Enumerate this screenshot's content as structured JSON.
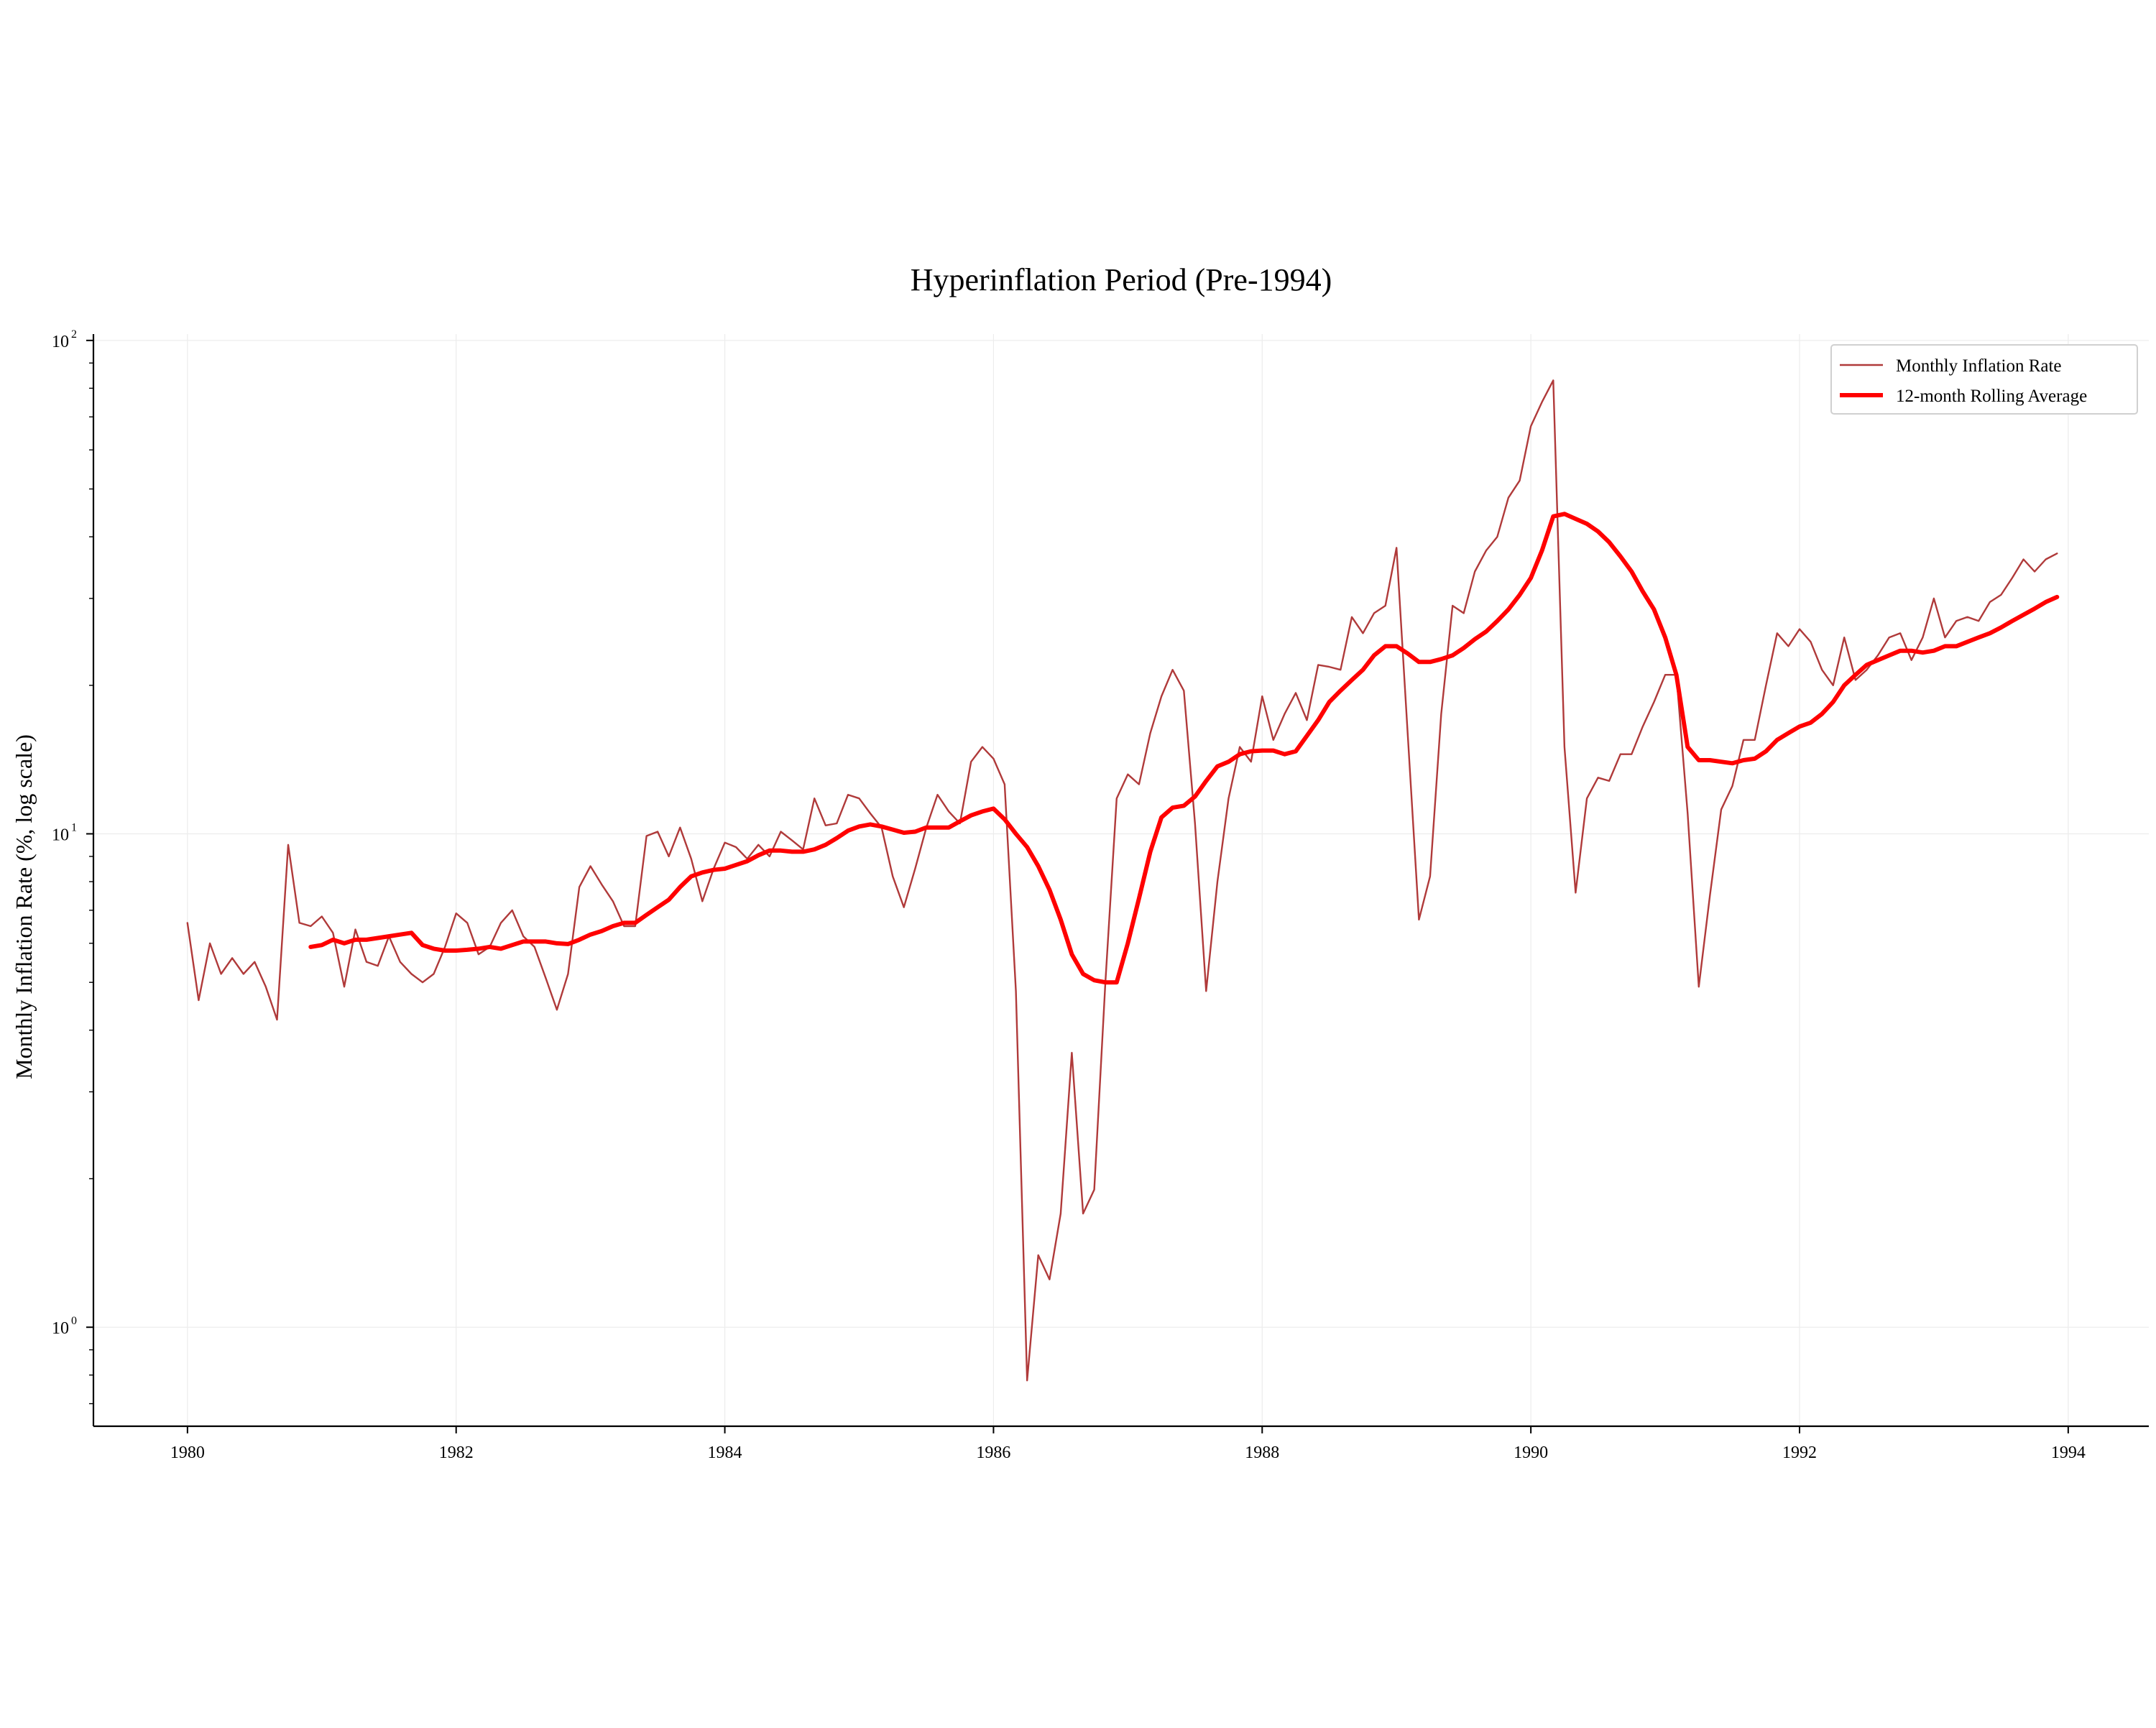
{
  "chart_data": {
    "type": "line",
    "title": "Hyperinflation Period (Pre-1994)",
    "xlabel": "",
    "ylabel": "Monthly Inflation Rate (%, log scale)",
    "yscale": "log",
    "xlim": [
      1979.3,
      1994.6
    ],
    "ylim": [
      0.63,
      103
    ],
    "x_ticks": [
      1980,
      1982,
      1984,
      1986,
      1988,
      1990,
      1992,
      1994
    ],
    "x_tick_labels": [
      "1980",
      "1982",
      "1984",
      "1986",
      "1988",
      "1990",
      "1992",
      "1994"
    ],
    "y_ticks": [
      {
        "value": 1,
        "base": "10",
        "exp": "0"
      },
      {
        "value": 10,
        "base": "10",
        "exp": "1"
      },
      {
        "value": 100,
        "base": "10",
        "exp": "2"
      }
    ],
    "grid": true,
    "legend_position": "top-right",
    "series": [
      {
        "name": "Monthly Inflation Rate",
        "color": "#b03a3a",
        "x": [
          1980.0,
          1980.083,
          1980.167,
          1980.25,
          1980.333,
          1980.417,
          1980.5,
          1980.583,
          1980.667,
          1980.75,
          1980.833,
          1980.917,
          1981.0,
          1981.083,
          1981.167,
          1981.25,
          1981.333,
          1981.417,
          1981.5,
          1981.583,
          1981.667,
          1981.75,
          1981.833,
          1981.917,
          1982.0,
          1982.083,
          1982.167,
          1982.25,
          1982.333,
          1982.417,
          1982.5,
          1982.583,
          1982.667,
          1982.75,
          1982.833,
          1982.917,
          1983.0,
          1983.083,
          1983.167,
          1983.25,
          1983.333,
          1983.417,
          1983.5,
          1983.583,
          1983.667,
          1983.75,
          1983.833,
          1983.917,
          1984.0,
          1984.083,
          1984.167,
          1984.25,
          1984.333,
          1984.417,
          1984.5,
          1984.583,
          1984.667,
          1984.75,
          1984.833,
          1984.917,
          1985.0,
          1985.083,
          1985.167,
          1985.25,
          1985.333,
          1985.417,
          1985.5,
          1985.583,
          1985.667,
          1985.75,
          1985.833,
          1985.917,
          1986.0,
          1986.083,
          1986.167,
          1986.25,
          1986.333,
          1986.417,
          1986.5,
          1986.583,
          1986.667,
          1986.75,
          1986.833,
          1986.917,
          1987.0,
          1987.083,
          1987.167,
          1987.25,
          1987.333,
          1987.417,
          1987.5,
          1987.583,
          1987.667,
          1987.75,
          1987.833,
          1987.917,
          1988.0,
          1988.083,
          1988.167,
          1988.25,
          1988.333,
          1988.417,
          1988.5,
          1988.583,
          1988.667,
          1988.75,
          1988.833,
          1988.917,
          1989.0,
          1989.083,
          1989.167,
          1989.25,
          1989.333,
          1989.417,
          1989.5,
          1989.583,
          1989.667,
          1989.75,
          1989.833,
          1989.917,
          1990.0,
          1990.083,
          1990.167,
          1990.25,
          1990.333,
          1990.417,
          1990.5,
          1990.583,
          1990.667,
          1990.75,
          1990.833,
          1990.917,
          1991.0,
          1991.083,
          1991.167,
          1991.25,
          1991.333,
          1991.417,
          1991.5,
          1991.583,
          1991.667,
          1991.75,
          1991.833,
          1991.917,
          1992.0,
          1992.083,
          1992.167,
          1992.25,
          1992.333,
          1992.417,
          1992.5,
          1992.583,
          1992.667,
          1992.75,
          1992.833,
          1992.917,
          1993.0,
          1993.083,
          1993.167,
          1993.25,
          1993.333,
          1993.417,
          1993.5,
          1993.583,
          1993.667,
          1993.75,
          1993.833,
          1993.917
        ],
        "y": [
          6.6,
          4.6,
          6.0,
          5.2,
          5.6,
          5.2,
          5.5,
          4.9,
          4.2,
          9.5,
          6.6,
          6.5,
          6.8,
          6.3,
          4.9,
          6.4,
          5.5,
          5.4,
          6.2,
          5.5,
          5.2,
          5.0,
          5.2,
          5.9,
          6.9,
          6.6,
          5.7,
          5.9,
          6.6,
          7.0,
          6.2,
          5.9,
          5.1,
          4.4,
          5.2,
          7.8,
          8.6,
          7.9,
          7.3,
          6.5,
          6.5,
          9.9,
          10.1,
          9.0,
          10.3,
          8.9,
          7.3,
          8.5,
          9.6,
          9.4,
          8.9,
          9.5,
          9.0,
          10.1,
          9.7,
          9.3,
          11.8,
          10.4,
          10.5,
          12.0,
          11.8,
          11.0,
          10.3,
          8.2,
          7.1,
          8.5,
          10.3,
          12.0,
          11.1,
          10.5,
          14.0,
          15.0,
          14.2,
          12.6,
          4.8,
          0.78,
          1.4,
          1.25,
          1.7,
          3.6,
          1.7,
          1.9,
          5.0,
          11.8,
          13.2,
          12.6,
          16.0,
          19.0,
          21.5,
          19.5,
          10.5,
          4.8,
          8.0,
          11.8,
          15.0,
          14.0,
          19.0,
          15.5,
          17.5,
          19.3,
          17.0,
          22.0,
          21.8,
          21.5,
          27.5,
          25.5,
          28.0,
          29.0,
          38.0,
          16.0,
          6.7,
          8.2,
          17.5,
          29.0,
          28.0,
          34.0,
          37.5,
          40.0,
          48.0,
          52.0,
          67.0,
          75.0,
          83.0,
          15.0,
          7.6,
          11.8,
          13.0,
          12.8,
          14.5,
          14.5,
          16.5,
          18.5,
          21.0,
          21.0,
          11.0,
          4.9,
          7.5,
          11.2,
          12.5,
          15.5,
          15.5,
          20.0,
          25.5,
          24.0,
          26.0,
          24.5,
          21.5,
          20.0,
          25.0,
          20.5,
          21.5,
          23.0,
          25.0,
          25.5,
          22.5,
          25.0,
          30.0,
          25.0,
          27.0,
          27.5,
          27.0,
          29.5,
          30.5,
          33.0,
          36.0,
          34.0,
          36.0,
          37.0
        ]
      },
      {
        "name": "12-month Rolling Average",
        "color": "#ff0000",
        "x": [
          1980.917,
          1981.0,
          1981.083,
          1981.167,
          1981.25,
          1981.333,
          1981.417,
          1981.5,
          1981.583,
          1981.667,
          1981.75,
          1981.833,
          1981.917,
          1982.0,
          1982.083,
          1982.167,
          1982.25,
          1982.333,
          1982.417,
          1982.5,
          1982.583,
          1982.667,
          1982.75,
          1982.833,
          1982.917,
          1983.0,
          1983.083,
          1983.167,
          1983.25,
          1983.333,
          1983.417,
          1983.5,
          1983.583,
          1983.667,
          1983.75,
          1983.833,
          1983.917,
          1984.0,
          1984.083,
          1984.167,
          1984.25,
          1984.333,
          1984.417,
          1984.5,
          1984.583,
          1984.667,
          1984.75,
          1984.833,
          1984.917,
          1985.0,
          1985.083,
          1985.167,
          1985.25,
          1985.333,
          1985.417,
          1985.5,
          1985.583,
          1985.667,
          1985.75,
          1985.833,
          1985.917,
          1986.0,
          1986.083,
          1986.167,
          1986.25,
          1986.333,
          1986.417,
          1986.5,
          1986.583,
          1986.667,
          1986.75,
          1986.833,
          1986.917,
          1987.0,
          1987.083,
          1987.167,
          1987.25,
          1987.333,
          1987.417,
          1987.5,
          1987.583,
          1987.667,
          1987.75,
          1987.833,
          1987.917,
          1988.0,
          1988.083,
          1988.167,
          1988.25,
          1988.333,
          1988.417,
          1988.5,
          1988.583,
          1988.667,
          1988.75,
          1988.833,
          1988.917,
          1989.0,
          1989.083,
          1989.167,
          1989.25,
          1989.333,
          1989.417,
          1989.5,
          1989.583,
          1989.667,
          1989.75,
          1989.833,
          1989.917,
          1990.0,
          1990.083,
          1990.167,
          1990.25,
          1990.333,
          1990.417,
          1990.5,
          1990.583,
          1990.667,
          1990.75,
          1990.833,
          1990.917,
          1991.0,
          1991.083,
          1991.167,
          1991.25,
          1991.333,
          1991.417,
          1991.5,
          1991.583,
          1991.667,
          1991.75,
          1991.833,
          1991.917,
          1992.0,
          1992.083,
          1992.167,
          1992.25,
          1992.333,
          1992.417,
          1992.5,
          1992.583,
          1992.667,
          1992.75,
          1992.833,
          1992.917,
          1993.0,
          1993.083,
          1993.167,
          1993.25,
          1993.333,
          1993.417,
          1993.5,
          1993.583,
          1993.667,
          1993.75,
          1993.833,
          1993.917
        ],
        "y": [
          5.9,
          5.95,
          6.1,
          6.0,
          6.1,
          6.1,
          6.15,
          6.2,
          6.25,
          6.3,
          5.95,
          5.85,
          5.8,
          5.8,
          5.82,
          5.85,
          5.9,
          5.85,
          5.95,
          6.05,
          6.05,
          6.05,
          6.0,
          5.98,
          6.1,
          6.25,
          6.35,
          6.5,
          6.6,
          6.6,
          6.85,
          7.1,
          7.35,
          7.8,
          8.2,
          8.35,
          8.45,
          8.5,
          8.65,
          8.8,
          9.05,
          9.25,
          9.25,
          9.2,
          9.2,
          9.3,
          9.5,
          9.8,
          10.15,
          10.35,
          10.45,
          10.35,
          10.2,
          10.05,
          10.1,
          10.3,
          10.3,
          10.3,
          10.6,
          10.9,
          11.1,
          11.25,
          10.7,
          10.0,
          9.4,
          8.6,
          7.7,
          6.7,
          5.7,
          5.2,
          5.05,
          5.0,
          5.0,
          6.0,
          7.4,
          9.2,
          10.8,
          11.3,
          11.4,
          11.9,
          12.8,
          13.7,
          14.0,
          14.5,
          14.7,
          14.75,
          14.75,
          14.5,
          14.7,
          15.8,
          17.0,
          18.5,
          19.5,
          20.5,
          21.5,
          23.0,
          24.0,
          24.0,
          23.2,
          22.3,
          22.3,
          22.6,
          23.0,
          23.8,
          24.8,
          25.7,
          27.0,
          28.5,
          30.5,
          33.0,
          37.5,
          44.0,
          44.5,
          43.5,
          42.5,
          41.0,
          39.0,
          36.5,
          34.0,
          31.0,
          28.5,
          25.0,
          21.0,
          15.0,
          14.1,
          14.1,
          14.0,
          13.9,
          14.1,
          14.2,
          14.7,
          15.5,
          16.0,
          16.5,
          16.8,
          17.5,
          18.5,
          20.0,
          21.0,
          22.0,
          22.5,
          23.0,
          23.5,
          23.5,
          23.3,
          23.5,
          24.0,
          24.0,
          24.5,
          25.0,
          25.5,
          26.2,
          27.0,
          27.8,
          28.6,
          29.5,
          30.2
        ]
      }
    ]
  }
}
